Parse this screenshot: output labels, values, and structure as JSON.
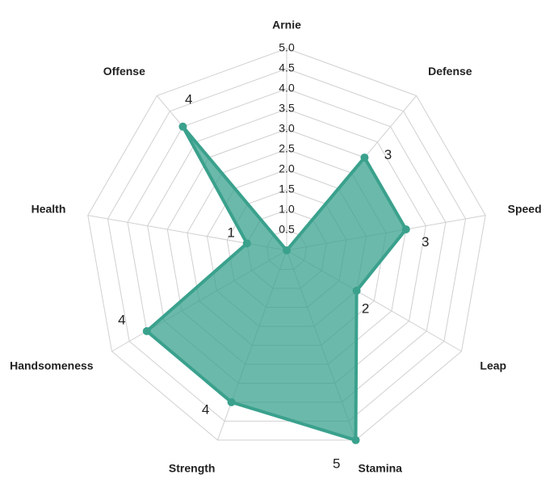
{
  "chart_data": {
    "type": "radar",
    "categories": [
      "Arnie",
      "Defense",
      "Speed",
      "Leap",
      "Stamina",
      "Strength",
      "Handsomeness",
      "Health",
      "Offense"
    ],
    "values": [
      0,
      3,
      3,
      2,
      5,
      4,
      4,
      1,
      4
    ],
    "color": "#3aa18d",
    "ylim": [
      0,
      5
    ],
    "yticks": [
      {
        "value": 0.5,
        "label": "0.5"
      },
      {
        "value": 1,
        "label": "1.0"
      },
      {
        "value": 1.5,
        "label": "1.5"
      },
      {
        "value": 2,
        "label": "2.0"
      },
      {
        "value": 2.5,
        "label": "2.5"
      },
      {
        "value": 3,
        "label": "3.0"
      },
      {
        "value": 3.5,
        "label": "3.5"
      },
      {
        "value": 4,
        "label": "4.0"
      },
      {
        "value": 4.5,
        "label": "4.5"
      },
      {
        "value": 5,
        "label": "5.0"
      }
    ],
    "grid": true
  }
}
